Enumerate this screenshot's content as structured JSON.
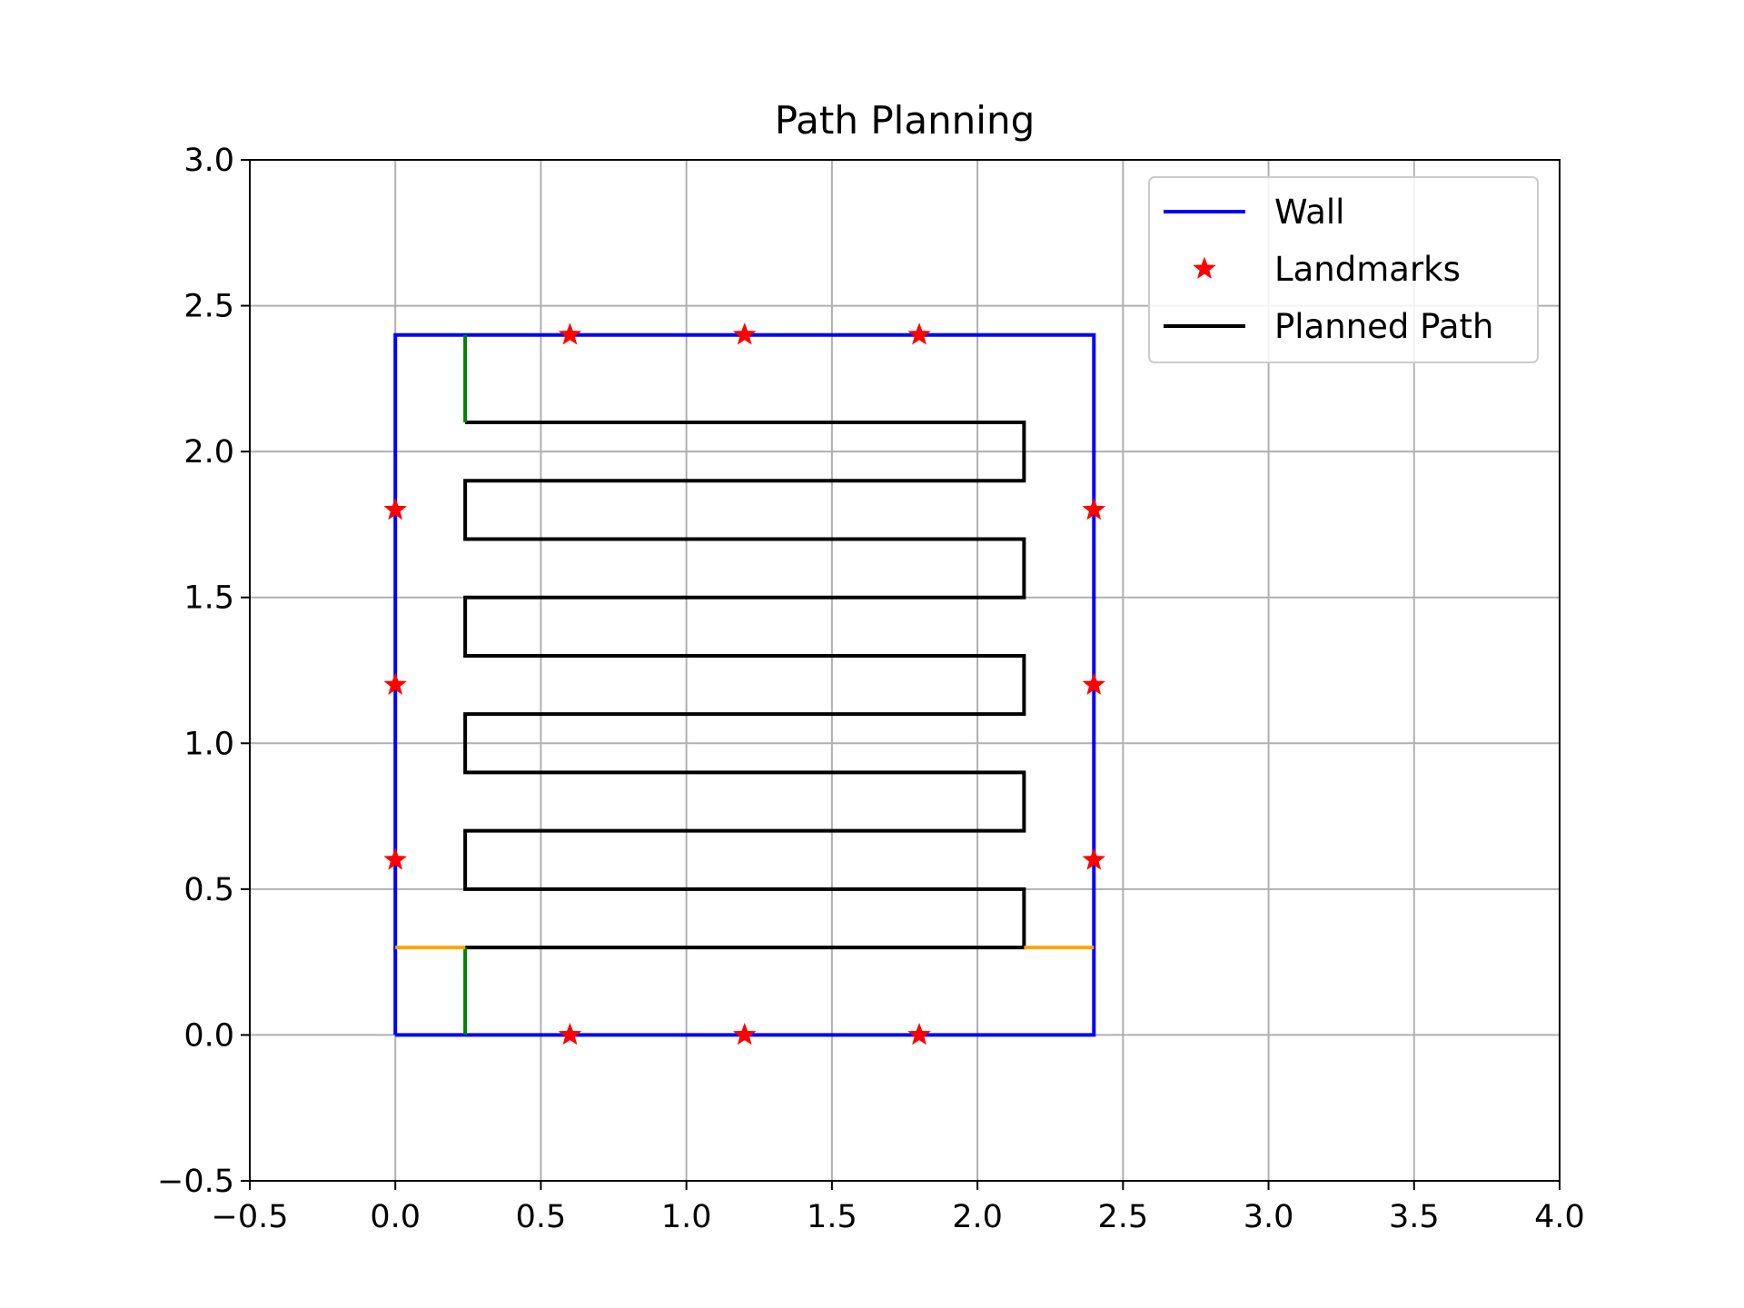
{
  "chart_data": {
    "type": "line",
    "title": "Path Planning",
    "xlabel": "",
    "ylabel": "",
    "xlim": [
      -0.5,
      4.0
    ],
    "ylim": [
      -0.5,
      3.0
    ],
    "xticks": [
      -0.5,
      0.0,
      0.5,
      1.0,
      1.5,
      2.0,
      2.5,
      3.0,
      3.5,
      4.0
    ],
    "yticks": [
      -0.5,
      0.0,
      0.5,
      1.0,
      1.5,
      2.0,
      2.5,
      3.0
    ],
    "xtick_labels": [
      "−0.5",
      "0.0",
      "0.5",
      "1.0",
      "1.5",
      "2.0",
      "2.5",
      "3.0",
      "3.5",
      "4.0"
    ],
    "ytick_labels": [
      "−0.5",
      "0.0",
      "0.5",
      "1.0",
      "1.5",
      "2.0",
      "2.5",
      "3.0"
    ],
    "grid": true,
    "legend": {
      "location": "top-right",
      "entries": [
        {
          "label": "Wall",
          "kind": "line",
          "color": "#0000ff"
        },
        {
          "label": "Landmarks",
          "kind": "star",
          "color": "#ff0000"
        },
        {
          "label": "Planned Path",
          "kind": "line",
          "color": "#000000"
        }
      ]
    },
    "series": [
      {
        "name": "Wall",
        "kind": "line",
        "color": "#0000ff",
        "points": [
          [
            0.0,
            0.0
          ],
          [
            2.4,
            0.0
          ],
          [
            2.4,
            2.4
          ],
          [
            0.0,
            2.4
          ],
          [
            0.0,
            0.0
          ]
        ]
      },
      {
        "name": "Landmarks",
        "kind": "star",
        "color": "#ff0000",
        "points": [
          [
            0.6,
            2.4
          ],
          [
            1.2,
            2.4
          ],
          [
            1.8,
            2.4
          ],
          [
            0.0,
            1.8
          ],
          [
            0.0,
            1.2
          ],
          [
            0.0,
            0.6
          ],
          [
            2.4,
            1.8
          ],
          [
            2.4,
            1.2
          ],
          [
            2.4,
            0.6
          ],
          [
            0.6,
            0.0
          ],
          [
            1.2,
            0.0
          ],
          [
            1.8,
            0.0
          ]
        ]
      },
      {
        "name": "Planned Path",
        "kind": "line",
        "color": "#000000",
        "points": [
          [
            0.24,
            0.3
          ],
          [
            2.16,
            0.3
          ],
          [
            2.16,
            0.5
          ],
          [
            0.24,
            0.5
          ],
          [
            0.24,
            0.7
          ],
          [
            2.16,
            0.7
          ],
          [
            2.16,
            0.9
          ],
          [
            0.24,
            0.9
          ],
          [
            0.24,
            1.1
          ],
          [
            2.16,
            1.1
          ],
          [
            2.16,
            1.3
          ],
          [
            0.24,
            1.3
          ],
          [
            0.24,
            1.5
          ],
          [
            2.16,
            1.5
          ],
          [
            2.16,
            1.7
          ],
          [
            0.24,
            1.7
          ],
          [
            0.24,
            1.9
          ],
          [
            2.16,
            1.9
          ],
          [
            2.16,
            2.1
          ],
          [
            0.24,
            2.1
          ]
        ]
      }
    ],
    "extra_segments": [
      {
        "color": "#008000",
        "points": [
          [
            0.24,
            2.1
          ],
          [
            0.24,
            2.4
          ]
        ]
      },
      {
        "color": "#008000",
        "points": [
          [
            0.24,
            0.0
          ],
          [
            0.24,
            0.3
          ]
        ]
      },
      {
        "color": "#ffa500",
        "points": [
          [
            0.0,
            0.3
          ],
          [
            0.24,
            0.3
          ]
        ]
      },
      {
        "color": "#ffa500",
        "points": [
          [
            2.16,
            0.3
          ],
          [
            2.4,
            0.3
          ]
        ]
      }
    ]
  }
}
